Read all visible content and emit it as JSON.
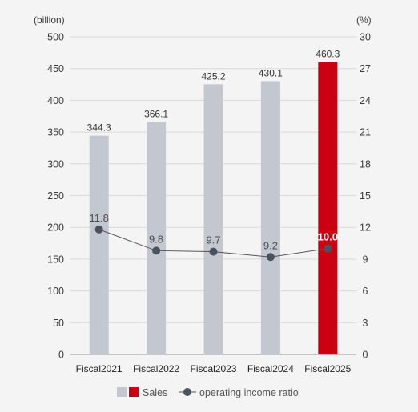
{
  "chart_data": {
    "type": "bar",
    "categories": [
      "Fiscal2021",
      "Fiscal2022",
      "Fiscal2023",
      "Fiscal2024",
      "Fiscal2025"
    ],
    "series": [
      {
        "name": "Sales",
        "type": "bar",
        "axis": "left",
        "values": [
          344.3,
          366.1,
          425.2,
          430.1,
          460.3
        ],
        "labels": [
          "344.3",
          "366.1",
          "425.2",
          "430.1",
          "460.3"
        ]
      },
      {
        "name": "operating income ratio",
        "type": "line",
        "axis": "right",
        "values": [
          11.8,
          9.8,
          9.7,
          9.2,
          10.0
        ],
        "labels": [
          "11.8",
          "9.8",
          "9.7",
          "9.2",
          "10.0"
        ]
      }
    ],
    "left_unit": "(billion)",
    "right_unit": "(%)",
    "ylim_left": [
      0,
      500
    ],
    "yticks_left": [
      "0",
      "50",
      "100",
      "150",
      "200",
      "250",
      "300",
      "350",
      "400",
      "450",
      "500"
    ],
    "ylim_right": [
      0,
      30
    ],
    "yticks_right": [
      "0",
      "3",
      "6",
      "9",
      "12",
      "15",
      "18",
      "21",
      "24",
      "27",
      "30"
    ],
    "grid": true,
    "highlight_index": 4,
    "legend_position": "bottom-center",
    "colors": {
      "bar": "#c3c7cf",
      "bar_highlight": "#cc0010",
      "line": "#555555",
      "marker": "#4a5260",
      "grid": "#d9d9d9",
      "background": "#f5f4f4"
    }
  }
}
